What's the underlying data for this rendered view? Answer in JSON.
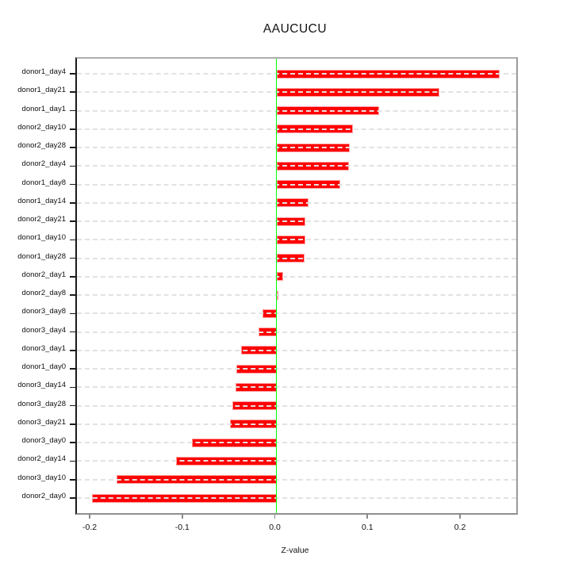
{
  "chart_data": {
    "type": "bar",
    "orientation": "horizontal",
    "title": "AAUCUCU",
    "xlabel": "Z-value",
    "ylabel": "",
    "categories": [
      "donor1_day4",
      "donor1_day21",
      "donor1_day1",
      "donor2_day10",
      "donor2_day28",
      "donor2_day4",
      "donor1_day8",
      "donor1_day14",
      "donor2_day21",
      "donor1_day10",
      "donor1_day28",
      "donor2_day1",
      "donor2_day8",
      "donor3_day8",
      "donor3_day4",
      "donor3_day1",
      "donor1_day0",
      "donor3_day14",
      "donor3_day28",
      "donor3_day21",
      "donor3_day0",
      "donor2_day14",
      "donor3_day10",
      "donor2_day0"
    ],
    "values": [
      0.241,
      0.176,
      0.111,
      0.083,
      0.079,
      0.078,
      0.069,
      0.035,
      0.031,
      0.031,
      0.03,
      0.007,
      0.002,
      -0.015,
      -0.019,
      -0.038,
      -0.043,
      -0.044,
      -0.048,
      -0.05,
      -0.091,
      -0.108,
      -0.173,
      -0.199
    ],
    "xlim": [
      -0.2155,
      0.2591
    ],
    "xticks": [
      -0.2,
      -0.1,
      0.0,
      0.1,
      0.2
    ],
    "xtick_labels": [
      "-0.2",
      "-0.1",
      "0.0",
      "0.1",
      "0.2"
    ],
    "grid": "horizontal dashed line per category, drawn over bars",
    "legend": "none",
    "colors": {
      "bar_fill": "#ff0000",
      "bar_border": "#ff9c9c",
      "zero_line": "#00ff00",
      "gridline": "#e2e2e2",
      "axis_left": "#1a1a1a",
      "axis_box": "#9a9a9a"
    }
  }
}
